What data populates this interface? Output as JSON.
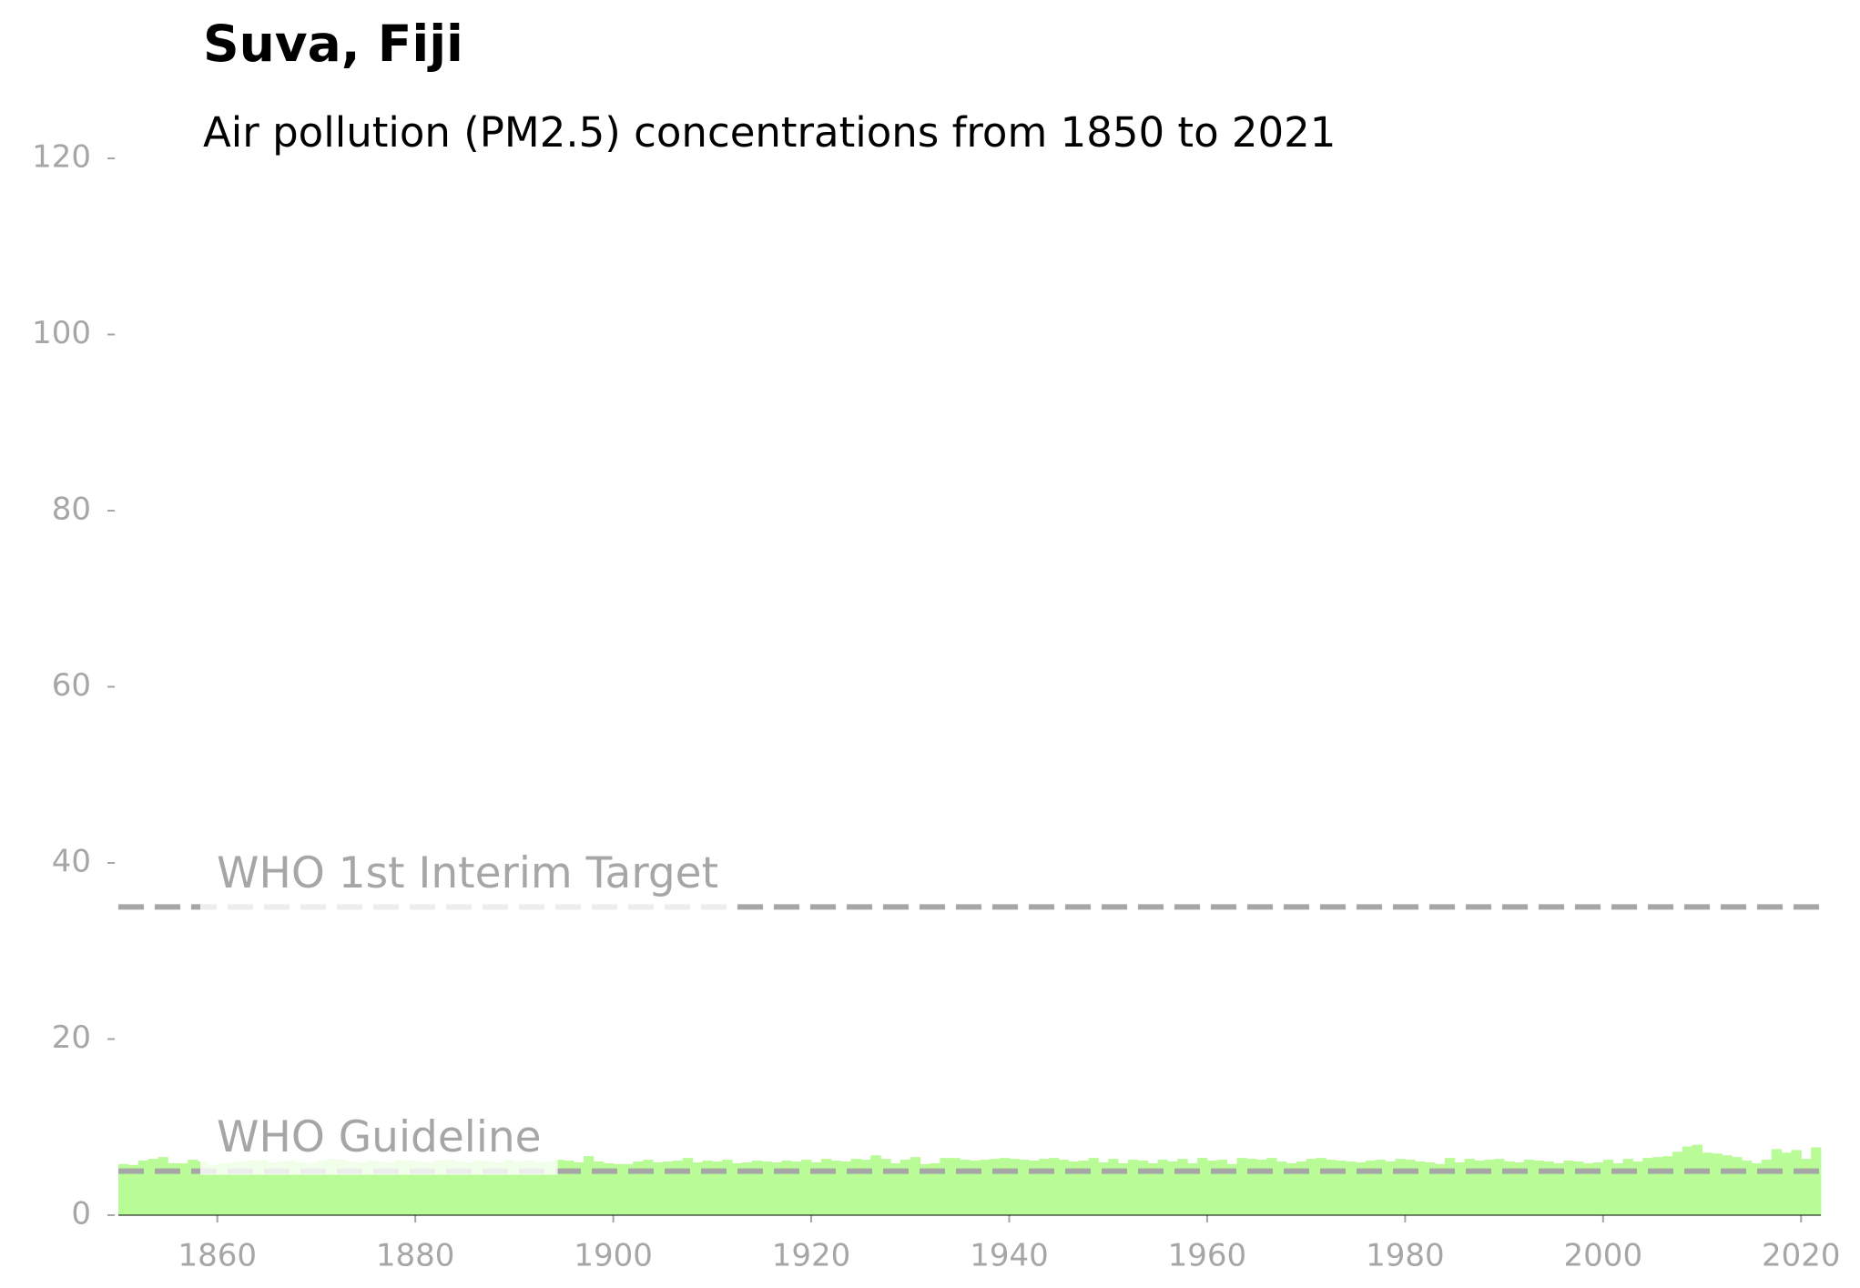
{
  "chart_data": {
    "type": "bar",
    "title": "Suva, Fiji",
    "subtitle": "Air pollution (PM2.5) concentrations from 1850 to 2021",
    "x": [
      1850,
      1851,
      1852,
      1853,
      1854,
      1855,
      1856,
      1857,
      1858,
      1859,
      1860,
      1861,
      1862,
      1863,
      1864,
      1865,
      1866,
      1867,
      1868,
      1869,
      1870,
      1871,
      1872,
      1873,
      1874,
      1875,
      1876,
      1877,
      1878,
      1879,
      1880,
      1881,
      1882,
      1883,
      1884,
      1885,
      1886,
      1887,
      1888,
      1889,
      1890,
      1891,
      1892,
      1893,
      1894,
      1895,
      1896,
      1897,
      1898,
      1899,
      1900,
      1901,
      1902,
      1903,
      1904,
      1905,
      1906,
      1907,
      1908,
      1909,
      1910,
      1911,
      1912,
      1913,
      1914,
      1915,
      1916,
      1917,
      1918,
      1919,
      1920,
      1921,
      1922,
      1923,
      1924,
      1925,
      1926,
      1927,
      1928,
      1929,
      1930,
      1931,
      1932,
      1933,
      1934,
      1935,
      1936,
      1937,
      1938,
      1939,
      1940,
      1941,
      1942,
      1943,
      1944,
      1945,
      1946,
      1947,
      1948,
      1949,
      1950,
      1951,
      1952,
      1953,
      1954,
      1955,
      1956,
      1957,
      1958,
      1959,
      1960,
      1961,
      1962,
      1963,
      1964,
      1965,
      1966,
      1967,
      1968,
      1969,
      1970,
      1971,
      1972,
      1973,
      1974,
      1975,
      1976,
      1977,
      1978,
      1979,
      1980,
      1981,
      1982,
      1983,
      1984,
      1985,
      1986,
      1987,
      1988,
      1989,
      1990,
      1991,
      1992,
      1993,
      1994,
      1995,
      1996,
      1997,
      1998,
      1999,
      2000,
      2001,
      2002,
      2003,
      2004,
      2005,
      2006,
      2007,
      2008,
      2009,
      2010,
      2011,
      2012,
      2013,
      2014,
      2015,
      2016,
      2017,
      2018,
      2019,
      2020,
      2021
    ],
    "values": [
      5.8,
      5.7,
      6.2,
      6.4,
      6.6,
      5.9,
      5.9,
      6.3,
      6.1,
      5.7,
      5.9,
      6.0,
      6.1,
      6.2,
      6.3,
      6.0,
      6.1,
      6.2,
      6.0,
      5.9,
      6.2,
      6.4,
      6.3,
      6.1,
      6.0,
      6.2,
      6.1,
      6.0,
      6.3,
      6.2,
      6.1,
      6.0,
      6.2,
      6.3,
      6.1,
      6.0,
      6.2,
      6.1,
      6.0,
      6.3,
      6.1,
      6.2,
      6.0,
      6.1,
      6.3,
      6.2,
      6.0,
      6.7,
      6.1,
      5.9,
      5.8,
      5.8,
      6.1,
      6.3,
      6.0,
      6.1,
      6.2,
      6.5,
      6.0,
      6.2,
      6.1,
      6.3,
      5.9,
      6.0,
      6.2,
      6.1,
      6.0,
      6.2,
      6.1,
      6.3,
      6.0,
      6.4,
      6.2,
      6.1,
      6.4,
      6.3,
      6.8,
      6.4,
      5.9,
      6.3,
      6.6,
      5.8,
      5.9,
      6.5,
      6.5,
      6.3,
      6.2,
      6.3,
      6.4,
      6.5,
      6.4,
      6.3,
      6.2,
      6.4,
      6.5,
      6.3,
      6.1,
      6.2,
      6.5,
      6.0,
      6.4,
      5.9,
      6.3,
      6.2,
      5.9,
      6.3,
      6.1,
      6.4,
      5.9,
      6.5,
      6.2,
      6.3,
      5.8,
      6.5,
      6.4,
      6.3,
      6.5,
      6.1,
      5.9,
      6.1,
      6.4,
      6.5,
      6.3,
      6.2,
      6.1,
      6.0,
      6.2,
      6.3,
      6.1,
      6.4,
      6.3,
      6.1,
      6.0,
      5.8,
      6.5,
      6.0,
      6.4,
      6.2,
      6.3,
      6.4,
      6.1,
      6.0,
      6.3,
      6.2,
      6.1,
      5.9,
      6.2,
      6.1,
      5.9,
      6.0,
      6.3,
      5.9,
      6.4,
      6.1,
      6.5,
      6.6,
      6.7,
      7.2,
      7.8,
      8.0,
      7.1,
      7.0,
      6.8,
      6.6,
      6.2,
      5.9,
      6.3,
      7.5,
      7.1,
      7.4,
      6.4,
      7.7
    ],
    "color": "#b9fc97",
    "xlim": [
      1850,
      2022
    ],
    "xticks": [
      1860,
      1880,
      1900,
      1920,
      1940,
      1960,
      1980,
      2000,
      2020
    ],
    "ylim": [
      0,
      120
    ],
    "yticks": [
      0,
      20,
      40,
      60,
      80,
      100,
      120
    ],
    "reference_lines": [
      {
        "label": "WHO Guideline",
        "value": 5
      },
      {
        "label": "WHO 1st Interim Target",
        "value": 35
      }
    ],
    "reference_color": "#a6a6a6"
  }
}
